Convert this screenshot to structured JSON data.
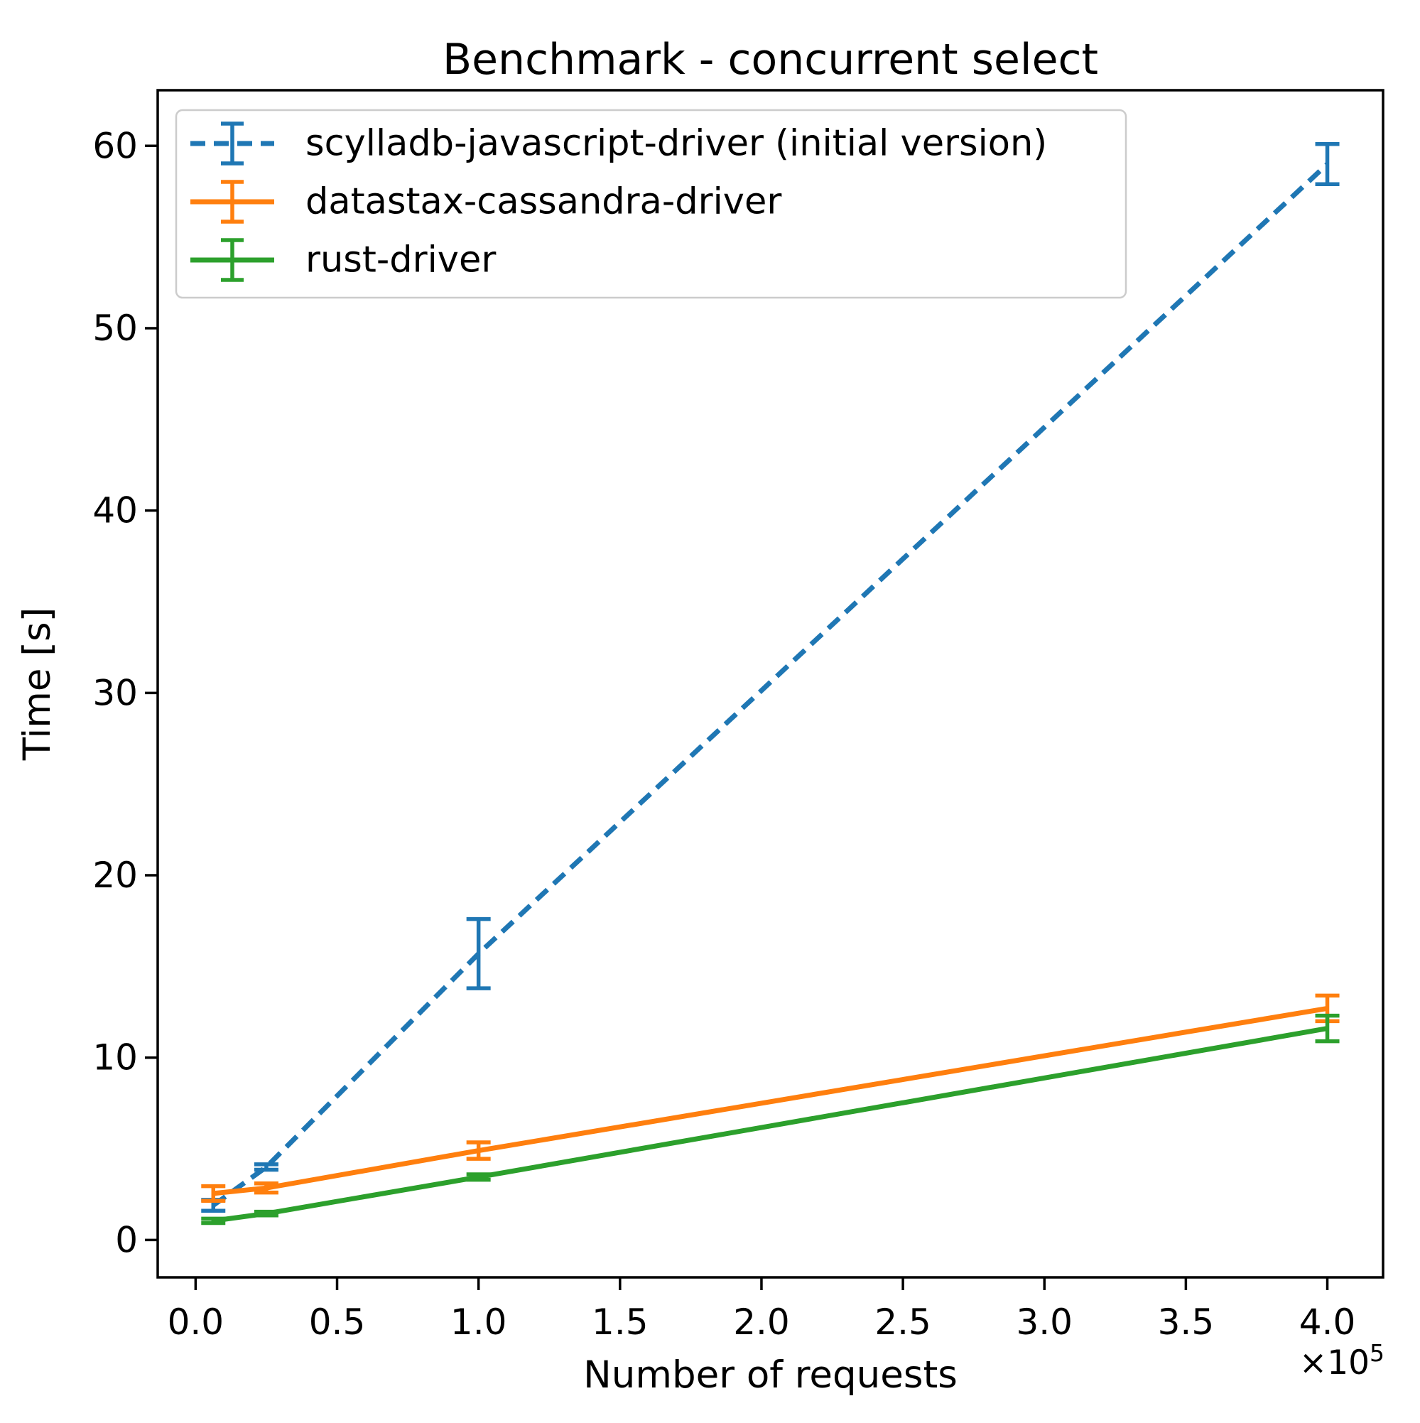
{
  "chart_data": {
    "type": "line",
    "title": "Benchmark - concurrent select",
    "xlabel": "Number of requests",
    "ylabel": "Time [s]",
    "x": [
      6250,
      25000,
      100000,
      400000
    ],
    "series": [
      {
        "name": "scylladb-javascript-driver (initial version)",
        "color": "#1f77b4",
        "linestyle": "dashed",
        "values": [
          1.9,
          4.0,
          15.7,
          59.0
        ],
        "yerr": [
          0.3,
          0.15,
          1.9,
          1.1
        ]
      },
      {
        "name": "datastax-cassandra-driver",
        "color": "#ff7f0e",
        "linestyle": "solid",
        "values": [
          2.55,
          2.85,
          4.9,
          12.7
        ],
        "yerr": [
          0.4,
          0.25,
          0.45,
          0.7
        ]
      },
      {
        "name": "rust-driver",
        "color": "#2ca02c",
        "linestyle": "solid",
        "values": [
          1.05,
          1.45,
          3.45,
          11.6
        ],
        "yerr": [
          0.12,
          0.1,
          0.15,
          0.7
        ]
      }
    ],
    "xlim": [
      -13400,
      419700
    ],
    "ylim": [
      -2.05,
      63.05
    ],
    "xticks": {
      "values": [
        0,
        50000,
        100000,
        150000,
        200000,
        250000,
        300000,
        350000,
        400000
      ],
      "labels": [
        "0.0",
        "0.5",
        "1.0",
        "1.5",
        "2.0",
        "2.5",
        "3.0",
        "3.5",
        "4.0"
      ]
    },
    "yticks": {
      "values": [
        0,
        10,
        20,
        30,
        40,
        50,
        60
      ],
      "labels": [
        "0",
        "10",
        "20",
        "30",
        "40",
        "50",
        "60"
      ]
    },
    "x_offset": {
      "base": "×10",
      "exponent": "5"
    },
    "grid": false,
    "legend_position": "upper left",
    "colors": {
      "axis": "#000000",
      "legend_border": "#cccccc",
      "legend_background": "#ffffff"
    }
  }
}
